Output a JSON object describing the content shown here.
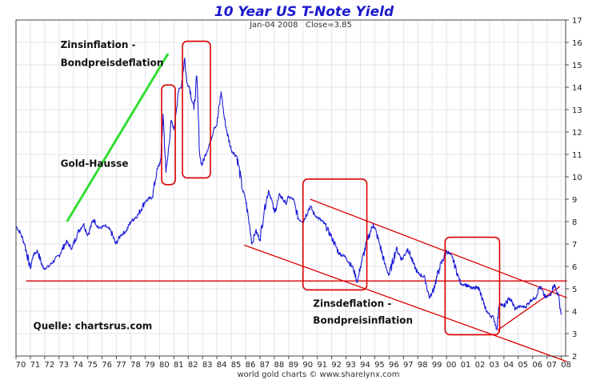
{
  "chart_data": {
    "type": "line",
    "title": "10 Year US T-Note Yield",
    "subtitle": "Jan-04 2008   Close=3.85",
    "footer": "world gold charts © www.sharelynx.com",
    "xlabel": "",
    "ylabel": "",
    "xlim": [
      1970,
      2008.3
    ],
    "ylim": [
      2,
      17
    ],
    "x_ticks": [
      "70",
      "71",
      "72",
      "73",
      "74",
      "75",
      "76",
      "77",
      "78",
      "79",
      "80",
      "81",
      "82",
      "83",
      "84",
      "85",
      "86",
      "87",
      "88",
      "89",
      "90",
      "91",
      "92",
      "93",
      "94",
      "95",
      "96",
      "97",
      "98",
      "99",
      "00",
      "01",
      "02",
      "03",
      "04",
      "05",
      "06",
      "07",
      "08"
    ],
    "y_ticks": [
      "2",
      "3",
      "4",
      "5",
      "6",
      "7",
      "8",
      "9",
      "10",
      "11",
      "12",
      "13",
      "14",
      "15",
      "16",
      "17"
    ],
    "series": [
      {
        "name": "10 Year US T-Note Yield",
        "color": "#1a1ad6",
        "x": [
          1970.0,
          1970.3,
          1970.6,
          1971.0,
          1971.2,
          1971.5,
          1971.9,
          1972.3,
          1972.7,
          1973.0,
          1973.5,
          1973.9,
          1974.3,
          1974.7,
          1975.0,
          1975.4,
          1975.8,
          1976.2,
          1976.6,
          1976.95,
          1977.3,
          1977.7,
          1978.0,
          1978.5,
          1979.0,
          1979.5,
          1979.8,
          1980.1,
          1980.25,
          1980.45,
          1980.6,
          1980.8,
          1981.0,
          1981.3,
          1981.5,
          1981.75,
          1981.9,
          1982.1,
          1982.4,
          1982.6,
          1982.8,
          1982.95,
          1983.2,
          1983.5,
          1983.8,
          1984.0,
          1984.3,
          1984.5,
          1984.7,
          1985.0,
          1985.4,
          1985.8,
          1986.0,
          1986.3,
          1986.45,
          1986.7,
          1987.0,
          1987.3,
          1987.6,
          1987.8,
          1988.0,
          1988.4,
          1988.8,
          1989.0,
          1989.3,
          1989.7,
          1990.0,
          1990.5,
          1990.8,
          1991.0,
          1991.5,
          1992.0,
          1992.5,
          1993.0,
          1993.5,
          1993.8,
          1994.0,
          1994.5,
          1994.9,
          1995.3,
          1995.7,
          1996.0,
          1996.5,
          1996.9,
          1997.3,
          1997.7,
          1998.0,
          1998.5,
          1998.8,
          1999.0,
          1999.5,
          2000.0,
          2000.4,
          2000.8,
          2001.0,
          2001.3,
          2001.8,
          2002.2,
          2002.6,
          2002.9,
          2003.3,
          2003.5,
          2003.7,
          2004.0,
          2004.4,
          2004.8,
          2005.0,
          2005.5,
          2005.9,
          2006.2,
          2006.5,
          2006.9,
          2007.2,
          2007.5,
          2007.8,
          2008.0
        ],
        "values": [
          7.8,
          7.5,
          7.0,
          5.9,
          6.5,
          6.7,
          5.9,
          6.0,
          6.3,
          6.5,
          7.1,
          6.8,
          7.5,
          7.9,
          7.4,
          8.1,
          7.7,
          7.8,
          7.6,
          7.0,
          7.4,
          7.6,
          8.0,
          8.3,
          8.9,
          9.1,
          10.2,
          10.8,
          12.8,
          10.2,
          11.0,
          12.5,
          12.1,
          13.8,
          14.0,
          15.3,
          14.2,
          14.0,
          13.0,
          14.5,
          11.0,
          10.5,
          11.0,
          11.5,
          12.2,
          12.3,
          13.8,
          12.7,
          12.0,
          11.2,
          10.9,
          9.4,
          9.0,
          7.7,
          7.0,
          7.6,
          7.2,
          8.5,
          9.4,
          9.0,
          8.4,
          9.2,
          8.8,
          9.1,
          9.0,
          8.1,
          8.0,
          8.7,
          8.3,
          8.2,
          7.9,
          7.3,
          6.6,
          6.4,
          5.9,
          5.3,
          6.0,
          7.2,
          7.9,
          7.1,
          6.1,
          5.6,
          6.8,
          6.3,
          6.8,
          6.1,
          5.7,
          5.5,
          4.6,
          4.8,
          5.9,
          6.7,
          6.4,
          5.6,
          5.2,
          5.2,
          5.0,
          5.1,
          4.3,
          3.9,
          3.7,
          3.2,
          4.4,
          4.2,
          4.6,
          4.1,
          4.2,
          4.2,
          4.5,
          4.6,
          5.1,
          4.6,
          4.7,
          5.2,
          4.7,
          3.85
        ]
      }
    ],
    "annotations": [
      {
        "text": "Zinsinflation -",
        "x": 1973.1,
        "y": 15.75
      },
      {
        "text": "Bondpreisdeflation",
        "x": 1973.1,
        "y": 14.95
      },
      {
        "text": "Gold-Hausse",
        "x": 1973.1,
        "y": 10.45
      },
      {
        "text": "Zinsdeflation -",
        "x": 1990.7,
        "y": 4.2
      },
      {
        "text": "Bondpreisinflation",
        "x": 1990.7,
        "y": 3.45
      },
      {
        "text": "Quelle: chartsrus.com",
        "x": 1971.2,
        "y": 3.2
      }
    ],
    "reference_lines": [
      {
        "name": "horizontal-support-line",
        "color": "#dd0000",
        "x1": 1970.7,
        "y1": 5.35,
        "x2": 2008.4,
        "y2": 5.35
      },
      {
        "name": "channel-upper-line",
        "color": "#dd0000",
        "x1": 1990.5,
        "y1": 9.0,
        "x2": 2008.4,
        "y2": 4.6
      },
      {
        "name": "channel-lower-line",
        "color": "#dd0000",
        "x1": 1985.9,
        "y1": 6.95,
        "x2": 2008.4,
        "y2": 1.75
      },
      {
        "name": "wedge-support-line",
        "color": "#dd0000",
        "x1": 2003.55,
        "y1": 3.15,
        "x2": 2007.9,
        "y2": 5.1
      },
      {
        "name": "gold-bull-trend-line",
        "color": "#33dd33",
        "x1": 1973.55,
        "y1": 8.0,
        "x2": 1980.6,
        "y2": 15.5
      }
    ],
    "highlight_boxes": [
      {
        "name": "highlight-box-1980",
        "color": "#dd0000",
        "x1": 1980.15,
        "x2": 1981.1,
        "y_top": 14.1,
        "y_bottom": 9.65
      },
      {
        "name": "highlight-box-1981-83",
        "color": "#dd0000",
        "x1": 1981.6,
        "x2": 1983.55,
        "y_top": 16.05,
        "y_bottom": 9.95
      },
      {
        "name": "highlight-box-1989-93",
        "color": "#dd0000",
        "x1": 1990.0,
        "x2": 1994.45,
        "y_top": 9.9,
        "y_bottom": 4.95
      },
      {
        "name": "highlight-box-1999-03",
        "color": "#dd0000",
        "x1": 1999.9,
        "x2": 2003.7,
        "y_top": 7.3,
        "y_bottom": 2.95
      }
    ]
  }
}
